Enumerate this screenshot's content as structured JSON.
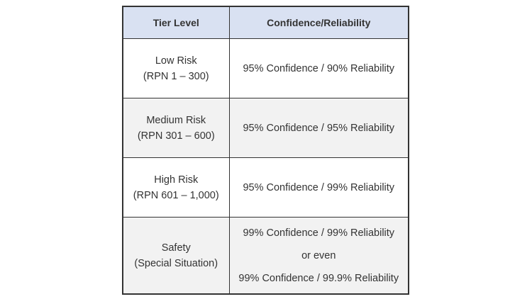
{
  "table": {
    "header": [
      "Tier Level",
      "Confidence/Reliability"
    ],
    "rows": [
      [
        [
          "Low Risk",
          "(RPN 1 – 300)"
        ],
        [
          "95% Confidence / 90% Reliability"
        ]
      ],
      [
        [
          "Medium Risk",
          "(RPN 301 – 600)"
        ],
        [
          "95% Confidence / 95% Reliability"
        ]
      ],
      [
        [
          "High Risk",
          "(RPN 601 – 1,000)"
        ],
        [
          "95% Confidence / 99% Reliability"
        ]
      ],
      [
        [
          "Safety",
          "(Special Situation)"
        ],
        [
          "99% Confidence / 99% Reliability",
          "or even",
          "99% Confidence / 99.9% Reliability"
        ]
      ]
    ]
  }
}
